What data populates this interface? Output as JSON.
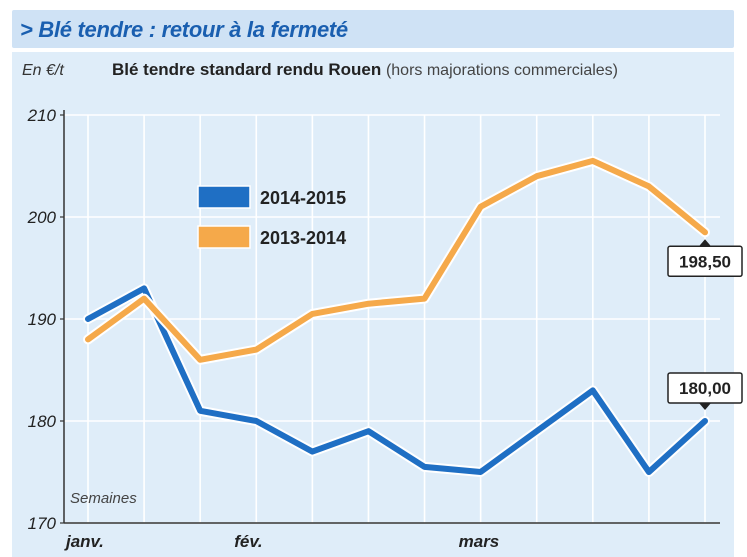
{
  "header": {
    "title": "> Blé tendre : retour à la fermeté"
  },
  "chart_data": {
    "type": "line",
    "title": "Blé tendre standard rendu Rouen",
    "subtitle": "(hors majorations commerciales)",
    "ylabel": "En €/t",
    "xlabel": "Semaines",
    "ylim": [
      170,
      210
    ],
    "yticks": [
      170,
      180,
      190,
      200,
      210
    ],
    "x_tick_labels": [
      {
        "label": "janv.",
        "at": 0
      },
      {
        "label": "fév.",
        "at": 3
      },
      {
        "label": "mars",
        "at": 7
      }
    ],
    "x": [
      0,
      1,
      2,
      3,
      4,
      5,
      6,
      7,
      8,
      9,
      10,
      11
    ],
    "grid": true,
    "legend_position": "upper-left",
    "series": [
      {
        "name": "2014-2015",
        "color": "#1f6fc4",
        "values": [
          190,
          193,
          181,
          180,
          177,
          179,
          175.5,
          175,
          179,
          183,
          175,
          180
        ],
        "end_label": "180,00"
      },
      {
        "name": "2013-2014",
        "color": "#f5a94a",
        "values": [
          188,
          192,
          186,
          187,
          190.5,
          191.5,
          192,
          201,
          204,
          205.5,
          203,
          198.5
        ],
        "end_label": "198,50"
      }
    ]
  }
}
